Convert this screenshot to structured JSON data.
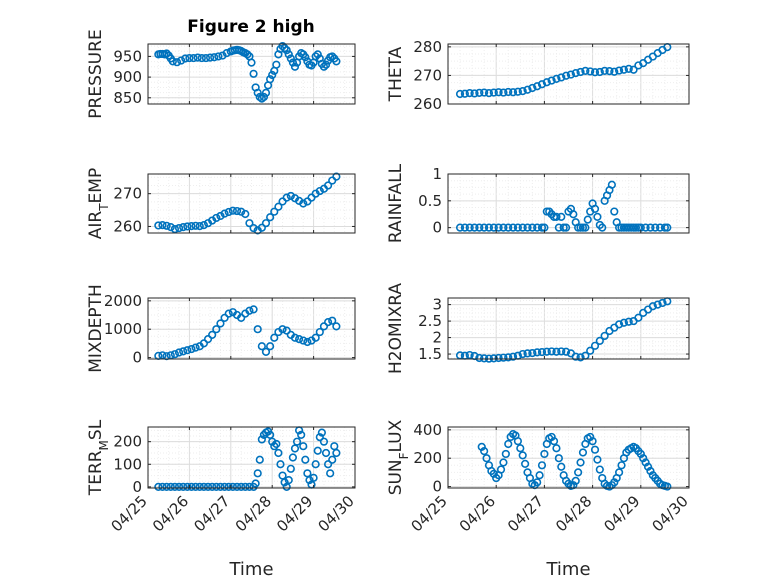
{
  "figure": {
    "title": "Figure 2 high",
    "marker_color": "#0072bd",
    "x_ticks": [
      "04/25",
      "04/26",
      "04/27",
      "04/28",
      "04/29",
      "04/30"
    ],
    "xlabel": "Time"
  },
  "chart_data": [
    {
      "type": "scatter",
      "ylabel": "PRESSURE",
      "ylim": [
        835,
        980
      ],
      "yticks": [
        850,
        900,
        950
      ],
      "xlim": [
        0,
        5
      ],
      "grid": true,
      "x": [
        0.25,
        0.3,
        0.35,
        0.4,
        0.45,
        0.5,
        0.55,
        0.6,
        0.7,
        0.8,
        0.9,
        1.0,
        1.1,
        1.2,
        1.3,
        1.4,
        1.5,
        1.6,
        1.7,
        1.8,
        1.9,
        2.0,
        2.05,
        2.1,
        2.15,
        2.2,
        2.25,
        2.3,
        2.35,
        2.4,
        2.45,
        2.5,
        2.55,
        2.6,
        2.65,
        2.7,
        2.75,
        2.8,
        2.85,
        2.9,
        2.95,
        3.0,
        3.05,
        3.1,
        3.15,
        3.2,
        3.25,
        3.3,
        3.35,
        3.4,
        3.45,
        3.5,
        3.55,
        3.6,
        3.65,
        3.7,
        3.75,
        3.8,
        3.85,
        3.9,
        3.95,
        4.0,
        4.05,
        4.1,
        4.15,
        4.2,
        4.25,
        4.3,
        4.35,
        4.4,
        4.45,
        4.5,
        4.55
      ],
      "y": [
        955,
        956,
        956,
        955,
        957,
        952,
        945,
        938,
        936,
        940,
        945,
        946,
        946,
        947,
        946,
        946,
        947,
        948,
        950,
        952,
        958,
        962,
        964,
        965,
        966,
        965,
        963,
        960,
        958,
        955,
        950,
        935,
        908,
        875,
        862,
        852,
        848,
        852,
        862,
        880,
        895,
        905,
        915,
        930,
        955,
        968,
        975,
        970,
        965,
        955,
        945,
        935,
        925,
        935,
        950,
        958,
        955,
        948,
        938,
        930,
        928,
        935,
        950,
        955,
        945,
        932,
        925,
        930,
        940,
        948,
        950,
        945,
        938
      ]
    },
    {
      "type": "scatter",
      "ylabel": "THETA",
      "ylim": [
        260,
        281
      ],
      "yticks": [
        260,
        270,
        280
      ],
      "xlim": [
        0,
        5
      ],
      "grid": true,
      "x": [
        0.25,
        0.35,
        0.45,
        0.55,
        0.65,
        0.75,
        0.85,
        0.95,
        1.05,
        1.15,
        1.25,
        1.35,
        1.45,
        1.55,
        1.65,
        1.75,
        1.85,
        1.95,
        2.05,
        2.15,
        2.25,
        2.35,
        2.45,
        2.55,
        2.65,
        2.75,
        2.85,
        2.95,
        3.05,
        3.15,
        3.25,
        3.35,
        3.45,
        3.55,
        3.65,
        3.75,
        3.85,
        3.95,
        4.05,
        4.15,
        4.25,
        4.35,
        4.45,
        4.55
      ],
      "y": [
        263.5,
        263.6,
        263.8,
        263.7,
        263.9,
        264.0,
        263.8,
        264.0,
        264.1,
        264.0,
        264.2,
        264.1,
        264.3,
        264.5,
        265.0,
        265.6,
        266.2,
        266.9,
        267.6,
        268.2,
        268.8,
        269.3,
        269.9,
        270.3,
        270.8,
        271.2,
        271.6,
        271.4,
        271.1,
        271.2,
        271.6,
        271.5,
        271.3,
        271.7,
        272.0,
        272.3,
        272.0,
        273.5,
        274.3,
        275.5,
        276.6,
        277.8,
        278.9,
        279.9
      ]
    },
    {
      "type": "scatter",
      "ylabel": "AIR",
      "ylabel_sub": "T",
      "ylabel_rest": "EMP",
      "ylim": [
        258,
        276
      ],
      "yticks": [
        260,
        270
      ],
      "xlim": [
        0,
        5
      ],
      "grid": true,
      "x": [
        0.25,
        0.35,
        0.45,
        0.55,
        0.65,
        0.75,
        0.85,
        0.95,
        1.05,
        1.15,
        1.25,
        1.35,
        1.45,
        1.55,
        1.65,
        1.75,
        1.85,
        1.95,
        2.05,
        2.15,
        2.25,
        2.35,
        2.45,
        2.55,
        2.65,
        2.75,
        2.85,
        2.95,
        3.05,
        3.15,
        3.25,
        3.35,
        3.45,
        3.55,
        3.65,
        3.75,
        3.85,
        3.95,
        4.05,
        4.15,
        4.25,
        4.35,
        4.45,
        4.55
      ],
      "y": [
        260.3,
        260.4,
        260.2,
        259.8,
        259.2,
        259.5,
        259.8,
        260.0,
        260.1,
        260.2,
        260.1,
        260.4,
        261.0,
        261.8,
        262.6,
        263.2,
        263.9,
        264.4,
        264.8,
        264.7,
        264.5,
        263.8,
        261.0,
        259.5,
        258.8,
        259.6,
        261.0,
        262.8,
        264.5,
        266.0,
        267.6,
        268.8,
        269.3,
        268.6,
        267.8,
        267.0,
        267.6,
        268.8,
        270.0,
        270.8,
        271.5,
        272.5,
        274.0,
        275.2
      ]
    },
    {
      "type": "scatter",
      "ylabel": "RAINFALL",
      "ylim": [
        -0.1,
        1.0
      ],
      "yticks": [
        0,
        0.5,
        1
      ],
      "ytick_labels": [
        "0",
        "0.5",
        "1"
      ],
      "xlim": [
        0,
        5
      ],
      "grid": true,
      "x": [
        0.25,
        0.35,
        0.45,
        0.55,
        0.65,
        0.75,
        0.85,
        0.95,
        1.05,
        1.15,
        1.25,
        1.35,
        1.45,
        1.55,
        1.65,
        1.75,
        1.85,
        1.95,
        2.0,
        2.05,
        2.1,
        2.15,
        2.2,
        2.25,
        2.3,
        2.35,
        2.4,
        2.45,
        2.5,
        2.55,
        2.6,
        2.65,
        2.7,
        2.75,
        2.8,
        2.85,
        2.9,
        2.95,
        3.0,
        3.05,
        3.1,
        3.15,
        3.2,
        3.25,
        3.3,
        3.35,
        3.4,
        3.45,
        3.5,
        3.55,
        3.6,
        3.65,
        3.7,
        3.75,
        3.8,
        3.85,
        3.9,
        3.95,
        4.0,
        4.1,
        4.2,
        4.3,
        4.4,
        4.5,
        4.55
      ],
      "y": [
        0,
        0,
        0,
        0,
        0,
        0,
        0,
        0,
        0,
        0,
        0,
        0,
        0,
        0,
        0,
        0,
        0,
        0,
        0,
        0.3,
        0.3,
        0.25,
        0.2,
        0.2,
        0,
        0.2,
        0,
        0,
        0.3,
        0.35,
        0.25,
        0.1,
        0,
        0,
        0,
        0,
        0.15,
        0.3,
        0.45,
        0.35,
        0.2,
        0.05,
        0,
        0.5,
        0.6,
        0.7,
        0.8,
        0.3,
        0.1,
        0,
        0,
        0,
        0,
        0,
        0,
        0,
        0,
        0,
        0,
        0,
        0,
        0,
        0,
        0,
        0
      ]
    },
    {
      "type": "scatter",
      "ylabel": "MIXDEPTH",
      "ylim": [
        -50,
        2100
      ],
      "yticks": [
        0,
        1000,
        2000
      ],
      "xlim": [
        0,
        5
      ],
      "grid": true,
      "x": [
        0.25,
        0.35,
        0.45,
        0.55,
        0.65,
        0.75,
        0.85,
        0.95,
        1.05,
        1.15,
        1.25,
        1.35,
        1.45,
        1.55,
        1.65,
        1.75,
        1.85,
        1.95,
        2.05,
        2.15,
        2.25,
        2.35,
        2.45,
        2.55,
        2.65,
        2.75,
        2.85,
        2.95,
        3.05,
        3.15,
        3.25,
        3.35,
        3.45,
        3.55,
        3.65,
        3.75,
        3.85,
        3.95,
        4.05,
        4.15,
        4.25,
        4.35,
        4.45,
        4.55
      ],
      "y": [
        60,
        80,
        50,
        80,
        120,
        180,
        220,
        260,
        300,
        350,
        400,
        500,
        650,
        800,
        1000,
        1200,
        1400,
        1550,
        1600,
        1500,
        1400,
        1550,
        1650,
        1700,
        1000,
        400,
        200,
        400,
        700,
        900,
        1000,
        950,
        800,
        700,
        650,
        600,
        550,
        600,
        700,
        900,
        1100,
        1250,
        1300,
        1100
      ]
    },
    {
      "type": "scatter",
      "ylabel": "H2OMIXRA",
      "ylim": [
        1.35,
        3.2
      ],
      "yticks": [
        1.5,
        2,
        2.5,
        3
      ],
      "ytick_labels": [
        "1.5",
        "2",
        "2.5",
        "3"
      ],
      "xlim": [
        0,
        5
      ],
      "grid": true,
      "x": [
        0.25,
        0.35,
        0.45,
        0.55,
        0.65,
        0.75,
        0.85,
        0.95,
        1.05,
        1.15,
        1.25,
        1.35,
        1.45,
        1.55,
        1.65,
        1.75,
        1.85,
        1.95,
        2.05,
        2.15,
        2.25,
        2.35,
        2.45,
        2.55,
        2.65,
        2.75,
        2.85,
        2.95,
        3.05,
        3.15,
        3.25,
        3.35,
        3.45,
        3.55,
        3.65,
        3.75,
        3.85,
        3.95,
        4.05,
        4.15,
        4.25,
        4.35,
        4.45,
        4.55
      ],
      "y": [
        1.46,
        1.45,
        1.47,
        1.44,
        1.38,
        1.37,
        1.36,
        1.37,
        1.38,
        1.39,
        1.4,
        1.42,
        1.45,
        1.5,
        1.52,
        1.53,
        1.55,
        1.56,
        1.57,
        1.58,
        1.57,
        1.58,
        1.57,
        1.52,
        1.42,
        1.4,
        1.45,
        1.6,
        1.75,
        1.9,
        2.05,
        2.2,
        2.3,
        2.4,
        2.45,
        2.48,
        2.5,
        2.6,
        2.75,
        2.85,
        2.95,
        3.0,
        3.05,
        3.1
      ]
    },
    {
      "type": "scatter",
      "ylabel": "TERR",
      "ylabel_sub": "M",
      "ylabel_rest": "SL",
      "ylim": [
        -5,
        265
      ],
      "yticks": [
        0,
        100,
        200
      ],
      "xlim": [
        0,
        5
      ],
      "grid": true,
      "x": [
        0.25,
        0.35,
        0.45,
        0.55,
        0.65,
        0.75,
        0.85,
        0.95,
        1.05,
        1.15,
        1.25,
        1.35,
        1.45,
        1.55,
        1.65,
        1.75,
        1.85,
        1.95,
        2.05,
        2.15,
        2.25,
        2.35,
        2.45,
        2.55,
        2.6,
        2.65,
        2.7,
        2.75,
        2.8,
        2.85,
        2.9,
        2.95,
        3.0,
        3.05,
        3.1,
        3.15,
        3.2,
        3.25,
        3.3,
        3.35,
        3.4,
        3.45,
        3.5,
        3.55,
        3.6,
        3.65,
        3.7,
        3.75,
        3.8,
        3.85,
        3.9,
        3.95,
        4.0,
        4.05,
        4.1,
        4.15,
        4.2,
        4.25,
        4.3,
        4.35,
        4.4,
        4.45,
        4.5,
        4.55
      ],
      "y": [
        0,
        0,
        0,
        0,
        0,
        0,
        0,
        0,
        0,
        0,
        0,
        0,
        0,
        0,
        0,
        0,
        0,
        0,
        0,
        0,
        0,
        0,
        0,
        0,
        15,
        60,
        120,
        210,
        230,
        240,
        245,
        230,
        200,
        180,
        190,
        150,
        100,
        50,
        20,
        0,
        30,
        80,
        130,
        170,
        200,
        250,
        230,
        180,
        120,
        60,
        30,
        10,
        40,
        100,
        160,
        220,
        240,
        200,
        150,
        100,
        60,
        120,
        180,
        150
      ]
    },
    {
      "type": "scatter",
      "ylabel": "SUN",
      "ylabel_sub": "F",
      "ylabel_rest": "LUX",
      "ylim": [
        -10,
        420
      ],
      "yticks": [
        0,
        200,
        400
      ],
      "xlim": [
        0,
        5
      ],
      "grid": true,
      "x": [
        0.7,
        0.75,
        0.8,
        0.85,
        0.9,
        0.95,
        1.0,
        1.05,
        1.1,
        1.15,
        1.2,
        1.25,
        1.3,
        1.35,
        1.4,
        1.45,
        1.5,
        1.55,
        1.6,
        1.65,
        1.7,
        1.75,
        1.8,
        1.85,
        1.9,
        1.95,
        2.0,
        2.05,
        2.1,
        2.15,
        2.2,
        2.25,
        2.3,
        2.35,
        2.4,
        2.45,
        2.5,
        2.55,
        2.6,
        2.65,
        2.7,
        2.75,
        2.8,
        2.85,
        2.9,
        2.95,
        3.0,
        3.05,
        3.1,
        3.15,
        3.2,
        3.25,
        3.3,
        3.35,
        3.4,
        3.45,
        3.5,
        3.55,
        3.6,
        3.65,
        3.7,
        3.75,
        3.8,
        3.85,
        3.9,
        3.95,
        4.0,
        4.05,
        4.1,
        4.15,
        4.2,
        4.25,
        4.3,
        4.35,
        4.4,
        4.45,
        4.5,
        4.55
      ],
      "y": [
        280,
        250,
        200,
        150,
        110,
        90,
        60,
        80,
        120,
        170,
        230,
        300,
        350,
        370,
        360,
        320,
        270,
        220,
        160,
        100,
        60,
        20,
        10,
        30,
        80,
        150,
        230,
        300,
        340,
        350,
        320,
        270,
        200,
        140,
        80,
        40,
        20,
        5,
        10,
        40,
        100,
        170,
        240,
        300,
        340,
        350,
        320,
        260,
        190,
        120,
        60,
        20,
        5,
        0,
        10,
        30,
        60,
        100,
        150,
        200,
        240,
        260,
        270,
        280,
        270,
        250,
        230,
        200,
        170,
        140,
        110,
        80,
        60,
        40,
        20,
        10,
        5,
        0
      ]
    }
  ]
}
